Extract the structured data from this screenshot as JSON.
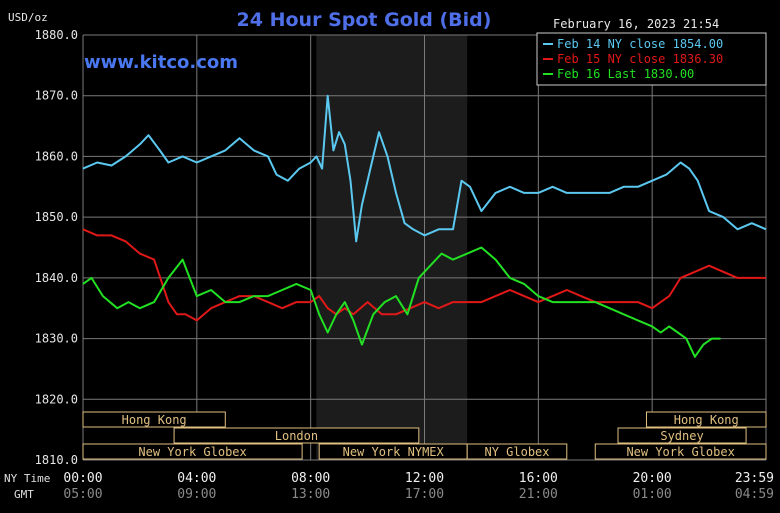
{
  "chart_data": {
    "type": "line",
    "title": "24 Hour Spot Gold (Bid)",
    "watermark": "www.kitco.com",
    "timestamp": "February 16, 2023 21:54",
    "ylabel": "USD/oz",
    "ylim": [
      1810,
      1880
    ],
    "y_ticks": [
      "1880.0",
      "1870.0",
      "1860.0",
      "1850.0",
      "1840.0",
      "1830.0",
      "1820.0",
      "1810.0"
    ],
    "x_row_labels": {
      "ny": "NY Time",
      "gmt": "GMT"
    },
    "x_ticks_ny": [
      "00:00",
      "04:00",
      "08:00",
      "12:00",
      "16:00",
      "20:00",
      "23:59"
    ],
    "x_ticks_gmt": [
      "05:00",
      "09:00",
      "13:00",
      "17:00",
      "21:00",
      "01:00",
      "04:59"
    ],
    "legend": [
      {
        "label": "Feb 14 NY close 1854.00",
        "color": "#5bc8f0"
      },
      {
        "label": "Feb 15 NY close 1836.30",
        "color": "#e01818"
      },
      {
        "label": "Feb 16 Last 1830.00",
        "color": "#22e022"
      }
    ],
    "sessions": [
      {
        "name": "Hong Kong",
        "row": 0,
        "start": 0,
        "end": 5.0
      },
      {
        "name": "Hong Kong",
        "row": 0,
        "start": 19.8,
        "end": 24
      },
      {
        "name": "London",
        "row": 1,
        "start": 3.2,
        "end": 11.8
      },
      {
        "name": "Sydney",
        "row": 1,
        "start": 18.8,
        "end": 23.3
      },
      {
        "name": "New York Globex",
        "row": 2,
        "start": 0,
        "end": 7.7
      },
      {
        "name": "New York NYMEX",
        "row": 2,
        "start": 8.3,
        "end": 13.5
      },
      {
        "name": "NY Globex",
        "row": 2,
        "start": 13.5,
        "end": 17
      },
      {
        "name": "New York Globex",
        "row": 2,
        "start": 18.0,
        "end": 24
      }
    ],
    "highlight": {
      "start": 8.2,
      "end": 13.5
    },
    "series": [
      {
        "name": "Feb 14 NY close 1854.00",
        "color": "#5bc8f0",
        "x": [
          0,
          0.5,
          1,
          1.5,
          2,
          2.3,
          2.7,
          3,
          3.5,
          4,
          4.5,
          5,
          5.5,
          6,
          6.5,
          6.8,
          7.2,
          7.6,
          8,
          8.2,
          8.4,
          8.6,
          8.8,
          9.0,
          9.2,
          9.4,
          9.6,
          9.8,
          10.1,
          10.4,
          10.7,
          11,
          11.3,
          11.6,
          12,
          12.5,
          13,
          13.3,
          13.6,
          14,
          14.5,
          15,
          15.5,
          16,
          16.5,
          17,
          17.5,
          18,
          18.5,
          19,
          19.5,
          20,
          20.5,
          21,
          21.3,
          21.6,
          22,
          22.5,
          23,
          23.5,
          24
        ],
        "y": [
          1858,
          1859,
          1858.5,
          1860,
          1862,
          1863.5,
          1861,
          1859,
          1860,
          1859,
          1860,
          1861,
          1863,
          1861,
          1860,
          1857,
          1856,
          1858,
          1859,
          1860,
          1858,
          1870,
          1861,
          1864,
          1862,
          1856,
          1846,
          1852,
          1858,
          1864,
          1860,
          1854,
          1849,
          1848,
          1847,
          1848,
          1848,
          1856,
          1855,
          1851,
          1854,
          1855,
          1854,
          1854,
          1855,
          1854,
          1854,
          1854,
          1854,
          1855,
          1855,
          1856,
          1857,
          1859,
          1858,
          1856,
          1851,
          1850,
          1848,
          1849,
          1848
        ]
      },
      {
        "name": "Feb 15 NY close 1836.30",
        "color": "#e01818",
        "x": [
          0,
          0.5,
          1,
          1.5,
          2,
          2.5,
          3,
          3.3,
          3.6,
          4,
          4.5,
          5,
          5.5,
          6,
          6.5,
          7,
          7.5,
          8,
          8.3,
          8.6,
          8.9,
          9.2,
          9.5,
          10,
          10.5,
          11,
          11.5,
          12,
          12.5,
          13,
          13.5,
          14,
          14.5,
          15,
          15.5,
          16,
          16.5,
          17,
          17.5,
          18,
          18.5,
          19,
          19.5,
          20,
          20.3,
          20.6,
          21,
          21.5,
          22,
          22.5,
          23,
          23.5,
          24
        ],
        "y": [
          1848,
          1847,
          1847,
          1846,
          1844,
          1843,
          1836,
          1834,
          1834,
          1833,
          1835,
          1836,
          1837,
          1837,
          1836,
          1835,
          1836,
          1836,
          1837,
          1835,
          1834,
          1835,
          1834,
          1836,
          1834,
          1834,
          1835,
          1836,
          1835,
          1836,
          1836,
          1836,
          1837,
          1838,
          1837,
          1836,
          1837,
          1838,
          1837,
          1836,
          1836,
          1836,
          1836,
          1835,
          1836,
          1837,
          1840,
          1841,
          1842,
          1841,
          1840,
          1840,
          1840
        ]
      },
      {
        "name": "Feb 16 Last 1830.00",
        "color": "#22e022",
        "x": [
          0,
          0.3,
          0.7,
          1.2,
          1.6,
          2,
          2.5,
          3,
          3.5,
          4,
          4.5,
          5,
          5.5,
          6,
          6.5,
          7,
          7.5,
          8,
          8.3,
          8.6,
          8.9,
          9.2,
          9.5,
          9.8,
          10.2,
          10.6,
          11,
          11.4,
          11.8,
          12.2,
          12.6,
          13,
          13.5,
          14,
          14.5,
          15,
          15.5,
          16,
          16.5,
          17,
          17.5,
          18,
          18.5,
          19,
          19.5,
          20,
          20.3,
          20.6,
          20.9,
          21.2,
          21.5,
          21.8,
          22.1,
          22.4
        ],
        "y": [
          1839,
          1840,
          1837,
          1835,
          1836,
          1835,
          1836,
          1840,
          1843,
          1837,
          1838,
          1836,
          1836,
          1837,
          1837,
          1838,
          1839,
          1838,
          1834,
          1831,
          1834,
          1836,
          1833,
          1829,
          1834,
          1836,
          1837,
          1834,
          1840,
          1842,
          1844,
          1843,
          1844,
          1845,
          1843,
          1840,
          1839,
          1837,
          1836,
          1836,
          1836,
          1836,
          1835,
          1834,
          1833,
          1832,
          1831,
          1832,
          1831,
          1830,
          1827,
          1829,
          1830,
          1830
        ]
      }
    ]
  }
}
